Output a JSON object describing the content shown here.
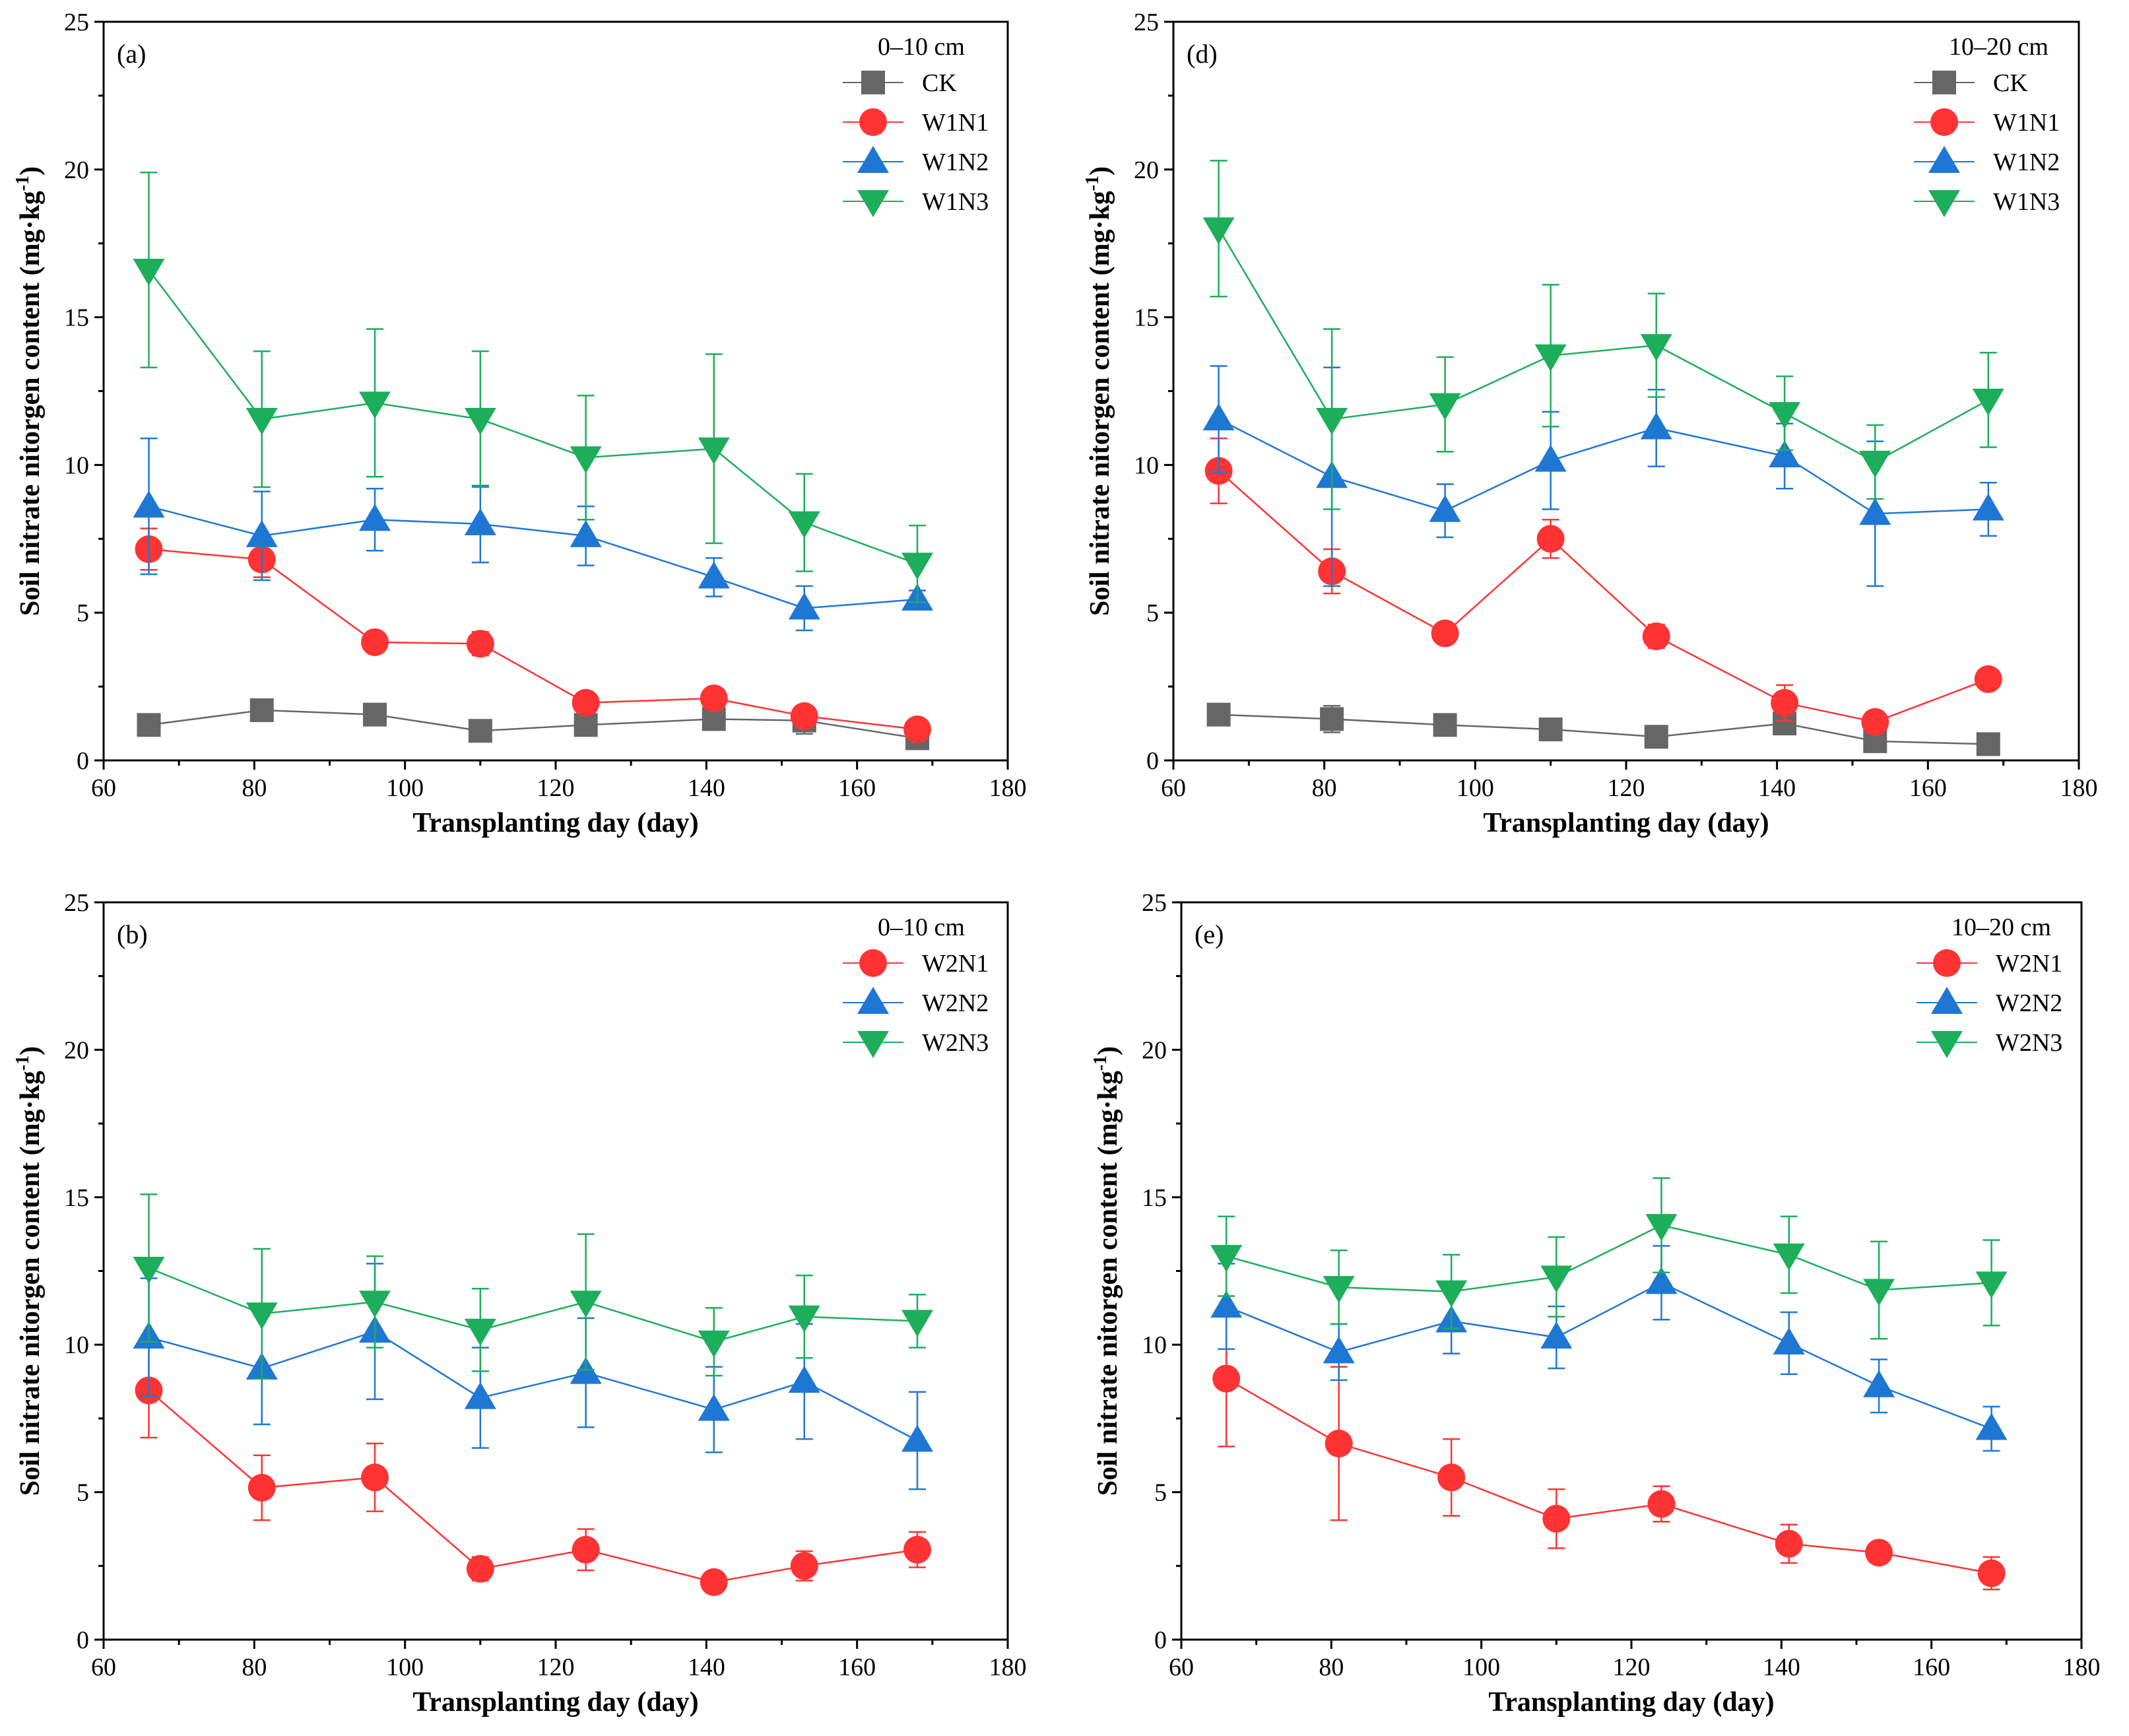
{
  "chart_data": [
    {
      "id": "a",
      "type": "line",
      "panel_label": "(a)",
      "depth_label": "0–10 cm",
      "xlabel": "Transplanting day (day)",
      "ylabel": "Soil nitrate nitorgen content (mg·kg",
      "ylabel_sup": "-1",
      "ylabel_close": ")",
      "xlim": [
        60,
        180
      ],
      "ylim": [
        0,
        25
      ],
      "xticks": [
        60,
        80,
        100,
        120,
        140,
        160,
        180
      ],
      "yticks": [
        0,
        5,
        10,
        15,
        20,
        25
      ],
      "x": [
        66,
        81,
        96,
        110,
        124,
        141,
        153,
        168
      ],
      "series": [
        {
          "name": "CK",
          "color": "#666666",
          "marker": "square",
          "values": [
            1.2,
            1.7,
            1.55,
            1.0,
            1.2,
            1.4,
            1.35,
            0.75
          ],
          "errors": [
            0.2,
            0.3,
            0.3,
            0.1,
            0.25,
            0.2,
            0.45,
            0.1
          ]
        },
        {
          "name": "W1N1",
          "color": "#ff3333",
          "marker": "circle",
          "values": [
            7.15,
            6.8,
            4.0,
            3.95,
            1.95,
            2.1,
            1.5,
            1.05
          ],
          "errors": [
            0.7,
            0.6,
            0.35,
            0.4,
            0.15,
            0.2,
            0.35,
            0.1
          ]
        },
        {
          "name": "W1N2",
          "color": "#1f77d4",
          "marker": "triangle-up",
          "values": [
            8.6,
            7.6,
            8.15,
            8.0,
            7.6,
            6.2,
            5.15,
            5.45
          ],
          "errors": [
            2.3,
            1.5,
            1.05,
            1.3,
            1.0,
            0.65,
            0.75,
            0.3
          ]
        },
        {
          "name": "W1N3",
          "color": "#1cae5a",
          "marker": "triangle-down",
          "values": [
            16.6,
            11.55,
            12.1,
            11.55,
            10.25,
            10.55,
            8.05,
            6.65
          ],
          "errors": [
            3.3,
            2.3,
            2.5,
            2.3,
            2.1,
            3.2,
            1.65,
            1.3
          ]
        }
      ]
    },
    {
      "id": "d",
      "type": "line",
      "panel_label": "(d)",
      "depth_label": "10–20 cm",
      "xlabel": "Transplanting day (day)",
      "ylabel": "Soil nitrate nitorgen content (mg·kg",
      "ylabel_sup": "-1",
      "ylabel_close": ")",
      "xlim": [
        60,
        180
      ],
      "ylim": [
        0,
        25
      ],
      "xticks": [
        60,
        80,
        100,
        120,
        140,
        160,
        180
      ],
      "yticks": [
        0,
        5,
        10,
        15,
        20,
        25
      ],
      "x": [
        66,
        81,
        96,
        110,
        124,
        141,
        153,
        168
      ],
      "series": [
        {
          "name": "CK",
          "color": "#666666",
          "marker": "square",
          "values": [
            1.55,
            1.4,
            1.2,
            1.05,
            0.8,
            1.25,
            0.65,
            0.55
          ],
          "errors": [
            0.1,
            0.45,
            0.35,
            0.15,
            0.1,
            0.35,
            0.3,
            0.1
          ]
        },
        {
          "name": "W1N1",
          "color": "#ff3333",
          "marker": "circle",
          "values": [
            9.8,
            6.4,
            4.3,
            7.5,
            4.2,
            1.95,
            1.3,
            2.75
          ],
          "errors": [
            1.1,
            0.75,
            0.3,
            0.65,
            0.4,
            0.6,
            0.35,
            0.25
          ]
        },
        {
          "name": "W1N2",
          "color": "#1f77d4",
          "marker": "triangle-up",
          "values": [
            11.55,
            9.6,
            8.45,
            10.15,
            11.25,
            10.3,
            8.35,
            8.5
          ],
          "errors": [
            1.8,
            3.7,
            0.9,
            1.65,
            1.3,
            1.1,
            2.45,
            0.9
          ]
        },
        {
          "name": "W1N3",
          "color": "#1cae5a",
          "marker": "triangle-down",
          "values": [
            18.0,
            11.55,
            12.05,
            13.7,
            14.05,
            11.75,
            10.1,
            12.2
          ],
          "errors": [
            2.3,
            3.05,
            1.6,
            2.4,
            1.75,
            1.25,
            1.25,
            1.6
          ]
        }
      ]
    },
    {
      "id": "b",
      "type": "line",
      "panel_label": "(b)",
      "depth_label": "0–10 cm",
      "xlabel": "Transplanting day (day)",
      "ylabel": "Soil nitrate nitorgen content (mg·kg",
      "ylabel_sup": "-1",
      "ylabel_close": ")",
      "xlim": [
        60,
        180
      ],
      "ylim": [
        0,
        25
      ],
      "xticks": [
        60,
        80,
        100,
        120,
        140,
        160,
        180
      ],
      "yticks": [
        0,
        5,
        10,
        15,
        20,
        25
      ],
      "x": [
        66,
        81,
        96,
        110,
        124,
        141,
        153,
        168
      ],
      "series": [
        {
          "name": "W2N1",
          "color": "#ff3333",
          "marker": "circle",
          "values": [
            8.45,
            5.15,
            5.5,
            2.4,
            3.05,
            1.95,
            2.5,
            3.05
          ],
          "errors": [
            1.6,
            1.1,
            1.15,
            0.4,
            0.7,
            0.35,
            0.5,
            0.6
          ]
        },
        {
          "name": "W2N2",
          "color": "#1f77d4",
          "marker": "triangle-up",
          "values": [
            10.25,
            9.2,
            10.45,
            8.2,
            9.05,
            7.8,
            8.75,
            6.75
          ],
          "errors": [
            2.0,
            1.9,
            2.3,
            1.7,
            1.85,
            1.45,
            1.95,
            1.65
          ]
        },
        {
          "name": "W2N3",
          "color": "#1cae5a",
          "marker": "triangle-down",
          "values": [
            12.6,
            11.05,
            11.45,
            10.5,
            11.45,
            10.1,
            10.95,
            10.8
          ],
          "errors": [
            2.5,
            2.2,
            1.55,
            1.4,
            2.3,
            1.15,
            1.4,
            0.9
          ]
        }
      ]
    },
    {
      "id": "e",
      "type": "line",
      "panel_label": "(e)",
      "depth_label": "10–20 cm",
      "xlabel": "Transplanting day (day)",
      "ylabel": "Soil nitrate nitorgen content (mg·kg",
      "ylabel_sup": "-1",
      "ylabel_close": ")",
      "xlim": [
        60,
        180
      ],
      "ylim": [
        0,
        25
      ],
      "xticks": [
        60,
        80,
        100,
        120,
        140,
        160,
        180
      ],
      "yticks": [
        0,
        5,
        10,
        15,
        20,
        25
      ],
      "x": [
        66,
        81,
        96,
        110,
        124,
        141,
        153,
        168
      ],
      "series": [
        {
          "name": "W2N1",
          "color": "#ff3333",
          "marker": "circle",
          "values": [
            8.85,
            6.65,
            5.5,
            4.1,
            4.6,
            3.25,
            2.95,
            2.25
          ],
          "errors": [
            2.3,
            2.6,
            1.3,
            1.0,
            0.6,
            0.65,
            0.3,
            0.55
          ]
        },
        {
          "name": "W2N2",
          "color": "#1f77d4",
          "marker": "triangle-up",
          "values": [
            11.3,
            9.75,
            10.8,
            10.25,
            12.1,
            10.05,
            8.6,
            7.15
          ],
          "errors": [
            1.45,
            0.95,
            1.1,
            1.05,
            1.25,
            1.05,
            0.9,
            0.75
          ]
        },
        {
          "name": "W2N3",
          "color": "#1cae5a",
          "marker": "triangle-down",
          "values": [
            13.0,
            11.95,
            11.8,
            12.3,
            14.05,
            13.05,
            11.85,
            12.1
          ],
          "errors": [
            1.35,
            1.25,
            1.25,
            1.35,
            1.6,
            1.3,
            1.65,
            1.45
          ]
        }
      ]
    }
  ]
}
